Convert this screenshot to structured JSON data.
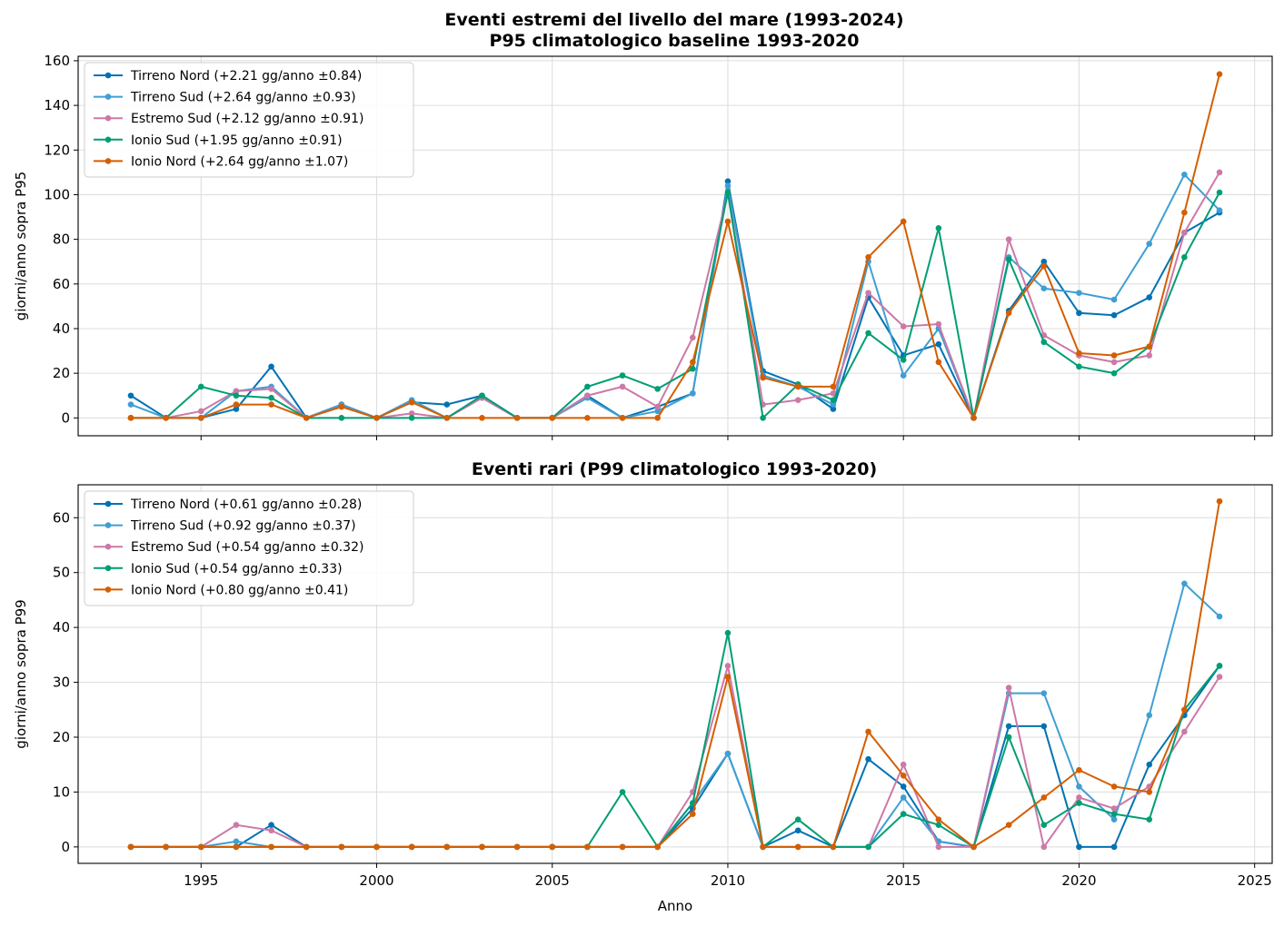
{
  "chart_data": [
    {
      "type": "line",
      "title": "Eventi estremi del livello del mare (1993-2024)",
      "subtitle": "P95 climatologico baseline 1993-2020",
      "xlabel": "",
      "ylabel": "giorni/anno sopra P95",
      "xlim": [
        1991.5,
        2025.5
      ],
      "ylim": [
        -8,
        162
      ],
      "xticks": [
        1995,
        2000,
        2005,
        2010,
        2015,
        2020,
        2025
      ],
      "yticks": [
        0,
        20,
        40,
        60,
        80,
        100,
        120,
        140,
        160
      ],
      "grid": true,
      "legend_position": "top-left",
      "x": [
        1993,
        1994,
        1995,
        1996,
        1997,
        1998,
        1999,
        2000,
        2001,
        2002,
        2003,
        2004,
        2005,
        2006,
        2007,
        2008,
        2009,
        2010,
        2011,
        2012,
        2013,
        2014,
        2015,
        2016,
        2017,
        2018,
        2019,
        2020,
        2021,
        2022,
        2023,
        2024
      ],
      "series": [
        {
          "name": "Tirreno Nord  (+2.21 gg/anno ±0.84)",
          "color": "#0072b2",
          "values": [
            10,
            0,
            0,
            4,
            23,
            0,
            6,
            0,
            7,
            6,
            10,
            0,
            0,
            10,
            0,
            5,
            11,
            106,
            21,
            15,
            4,
            54,
            28,
            33,
            0,
            48,
            70,
            47,
            46,
            54,
            83,
            92
          ]
        },
        {
          "name": "Tirreno Sud  (+2.64 gg/anno ±0.93)",
          "color": "#3f9fd4",
          "values": [
            6,
            0,
            0,
            12,
            14,
            0,
            6,
            0,
            8,
            0,
            9,
            0,
            0,
            9,
            0,
            3,
            11,
            104,
            19,
            14,
            6,
            70,
            19,
            40,
            0,
            72,
            58,
            56,
            53,
            78,
            109,
            93
          ]
        },
        {
          "name": "Estremo Sud  (+2.12 gg/anno ±0.91)",
          "color": "#cc79a7",
          "values": [
            0,
            0,
            3,
            12,
            13,
            0,
            5,
            0,
            2,
            0,
            9,
            0,
            0,
            10,
            14,
            5,
            36,
            101,
            6,
            8,
            11,
            56,
            41,
            42,
            0,
            80,
            37,
            28,
            25,
            28,
            83,
            110
          ]
        },
        {
          "name": "Ionio Sud  (+1.95 gg/anno ±0.91)",
          "color": "#009e73",
          "values": [
            0,
            0,
            14,
            10,
            9,
            0,
            0,
            0,
            0,
            0,
            10,
            0,
            0,
            14,
            19,
            13,
            22,
            101,
            0,
            15,
            8,
            38,
            26,
            85,
            0,
            71,
            34,
            23,
            20,
            32,
            72,
            101
          ]
        },
        {
          "name": "Ionio Nord  (+2.64 gg/anno ±1.07)",
          "color": "#d55e00",
          "values": [
            0,
            0,
            0,
            6,
            6,
            0,
            5,
            0,
            7,
            0,
            0,
            0,
            0,
            0,
            0,
            0,
            25,
            88,
            18,
            14,
            14,
            72,
            88,
            25,
            0,
            47,
            68,
            29,
            28,
            32,
            92,
            154
          ]
        }
      ]
    },
    {
      "type": "line",
      "title": "Eventi rari (P99 climatologico 1993-2020)",
      "xlabel": "Anno",
      "ylabel": "giorni/anno sopra P99",
      "xlim": [
        1991.5,
        2025.5
      ],
      "ylim": [
        -3,
        66
      ],
      "xticks": [
        1995,
        2000,
        2005,
        2010,
        2015,
        2020,
        2025
      ],
      "yticks": [
        0,
        10,
        20,
        30,
        40,
        50,
        60
      ],
      "grid": true,
      "legend_position": "top-left",
      "x": [
        1993,
        1994,
        1995,
        1996,
        1997,
        1998,
        1999,
        2000,
        2001,
        2002,
        2003,
        2004,
        2005,
        2006,
        2007,
        2008,
        2009,
        2010,
        2011,
        2012,
        2013,
        2014,
        2015,
        2016,
        2017,
        2018,
        2019,
        2020,
        2021,
        2022,
        2023,
        2024
      ],
      "series": [
        {
          "name": "Tirreno Nord  (+0.61 gg/anno ±0.28)",
          "color": "#0072b2",
          "values": [
            0,
            0,
            0,
            0,
            4,
            0,
            0,
            0,
            0,
            0,
            0,
            0,
            0,
            0,
            0,
            0,
            7,
            17,
            0,
            3,
            0,
            16,
            11,
            1,
            0,
            22,
            22,
            0,
            0,
            15,
            24,
            33
          ]
        },
        {
          "name": "Tirreno Sud  (+0.92 gg/anno ±0.37)",
          "color": "#3f9fd4",
          "values": [
            0,
            0,
            0,
            1,
            0,
            0,
            0,
            0,
            0,
            0,
            0,
            0,
            0,
            0,
            0,
            0,
            8,
            17,
            0,
            0,
            0,
            0,
            9,
            1,
            0,
            28,
            28,
            11,
            5,
            24,
            48,
            42
          ]
        },
        {
          "name": "Estremo Sud  (+0.54 gg/anno ±0.32)",
          "color": "#cc79a7",
          "values": [
            0,
            0,
            0,
            4,
            3,
            0,
            0,
            0,
            0,
            0,
            0,
            0,
            0,
            0,
            0,
            0,
            10,
            33,
            0,
            0,
            0,
            0,
            15,
            0,
            0,
            29,
            0,
            9,
            7,
            11,
            21,
            31
          ]
        },
        {
          "name": "Ionio Sud  (+0.54 gg/anno ±0.33)",
          "color": "#009e73",
          "values": [
            0,
            0,
            0,
            0,
            0,
            0,
            0,
            0,
            0,
            0,
            0,
            0,
            0,
            0,
            10,
            0,
            8,
            39,
            0,
            5,
            0,
            0,
            6,
            4,
            0,
            20,
            4,
            8,
            6,
            5,
            25,
            33
          ]
        },
        {
          "name": "Ionio Nord  (+0.80 gg/anno ±0.41)",
          "color": "#d55e00",
          "values": [
            0,
            0,
            0,
            0,
            0,
            0,
            0,
            0,
            0,
            0,
            0,
            0,
            0,
            0,
            0,
            0,
            6,
            31,
            0,
            0,
            0,
            21,
            13,
            5,
            0,
            4,
            9,
            14,
            11,
            10,
            25,
            63
          ]
        }
      ]
    }
  ]
}
